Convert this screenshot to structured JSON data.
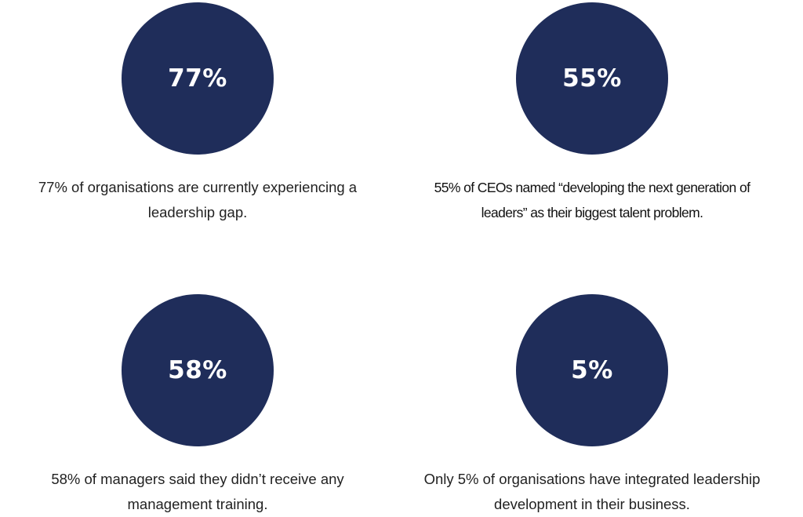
{
  "colors": {
    "circle": "#1f2d5a",
    "value_text": "#ffffff"
  },
  "stats": [
    {
      "value": "77%",
      "caption": "77% of organisations are currently experiencing a leadership gap."
    },
    {
      "value": "55%",
      "caption": "55% of CEOs named “developing the next generation of leaders” as their biggest talent problem."
    },
    {
      "value": "58%",
      "caption": "58% of managers said they didn’t receive any management training."
    },
    {
      "value": "5%",
      "caption": "Only 5% of organisations have integrated leadership development in their business."
    }
  ]
}
